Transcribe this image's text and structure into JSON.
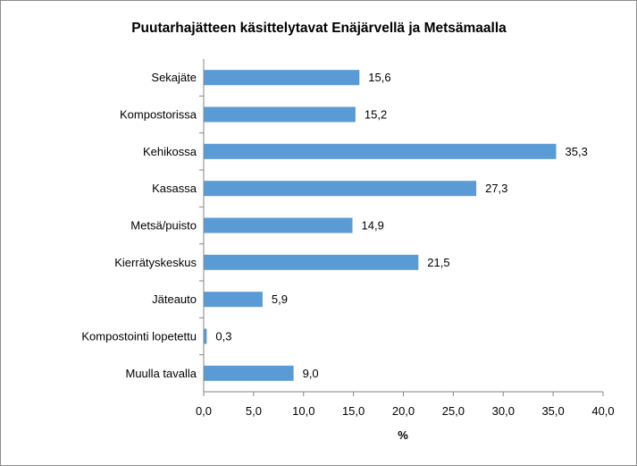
{
  "chart_data": {
    "type": "bar",
    "orientation": "horizontal",
    "title": "Puutarhajätteen käsittelytavat Enäjärvellä ja Metsämaalla",
    "xlabel": "%",
    "ylabel": "",
    "categories": [
      "Sekajäte",
      "Kompostorissa",
      "Kehikossa",
      "Kasassa",
      "Metsä/puisto",
      "Kierrätyskeskus",
      "Jäteauto",
      "Kompostointi lopetettu",
      "Muulla tavalla"
    ],
    "values": [
      15.6,
      15.2,
      35.3,
      27.3,
      14.9,
      21.5,
      5.9,
      0.3,
      9.0
    ],
    "data_labels": [
      "15,6",
      "15,2",
      "35,3",
      "27,3",
      "14,9",
      "21,5",
      "5,9",
      "0,3",
      "9,0"
    ],
    "xlim": [
      0,
      40
    ],
    "x_ticks": [
      0,
      5,
      10,
      15,
      20,
      25,
      30,
      35,
      40
    ],
    "x_tick_labels": [
      "0,0",
      "5,0",
      "10,0",
      "15,0",
      "20,0",
      "25,0",
      "30,0",
      "35,0",
      "40,0"
    ],
    "grid": false,
    "legend": "none",
    "bar_color": "#5b9bd5",
    "axis_color": "#868686"
  }
}
